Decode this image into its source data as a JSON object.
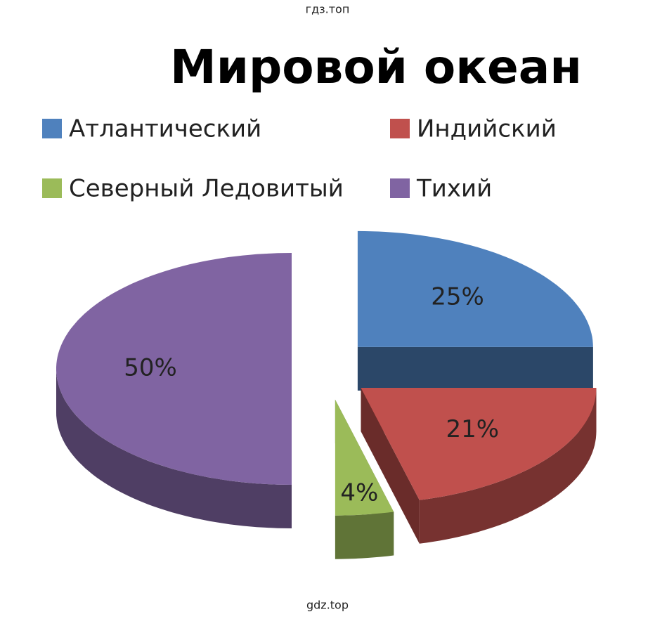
{
  "chart_data": {
    "type": "pie3d",
    "title": "Мировой океан",
    "watermarks": [
      "гдз.топ",
      "gdz.top"
    ],
    "categories": [
      "Атлантический",
      "Индийский",
      "Северный Ледовитый",
      "Тихий"
    ],
    "values": [
      25,
      21,
      4,
      50
    ],
    "value_labels": [
      "25%",
      "21%",
      "4%",
      "50%"
    ],
    "colors": [
      "#4f81bd",
      "#c0504d",
      "#9bbb59",
      "#8064a2"
    ],
    "legend": "top"
  }
}
